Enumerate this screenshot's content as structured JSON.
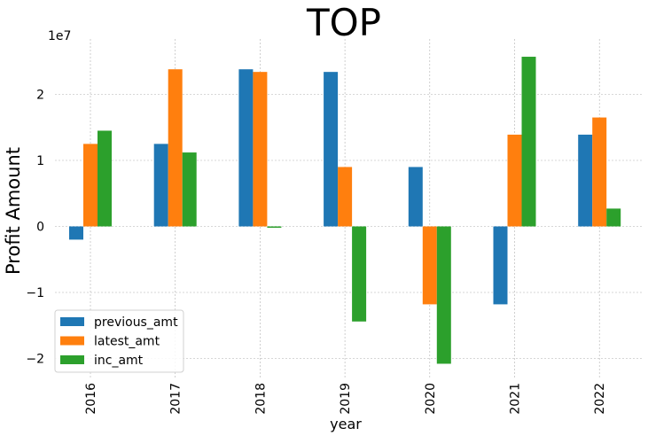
{
  "chart_data": {
    "type": "bar",
    "title": "TOP",
    "xlabel": "year",
    "ylabel": "Profit Amount",
    "scale_label": "1e7",
    "categories": [
      "2016",
      "2017",
      "2018",
      "2019",
      "2020",
      "2021",
      "2022"
    ],
    "series": [
      {
        "name": "previous_amt",
        "color": "#1f77b4",
        "values": [
          -2000000,
          12500000,
          23800000,
          23400000,
          9000000,
          -11800000,
          13900000
        ]
      },
      {
        "name": "latest_amt",
        "color": "#ff7f0e",
        "values": [
          12500000,
          23800000,
          23400000,
          9000000,
          -11800000,
          13900000,
          16500000
        ]
      },
      {
        "name": "inc_amt",
        "color": "#2ca02c",
        "values": [
          14500000,
          11200000,
          -200000,
          -14400000,
          -20800000,
          25700000,
          2700000
        ]
      }
    ],
    "yticks": [
      -20000000,
      -10000000,
      0,
      10000000,
      20000000
    ],
    "ytick_labels": [
      "−2",
      "−1",
      "0",
      "1",
      "2"
    ],
    "ylim": [
      -22500000,
      28000000
    ],
    "grid": true,
    "legend_position": "lower-left"
  }
}
